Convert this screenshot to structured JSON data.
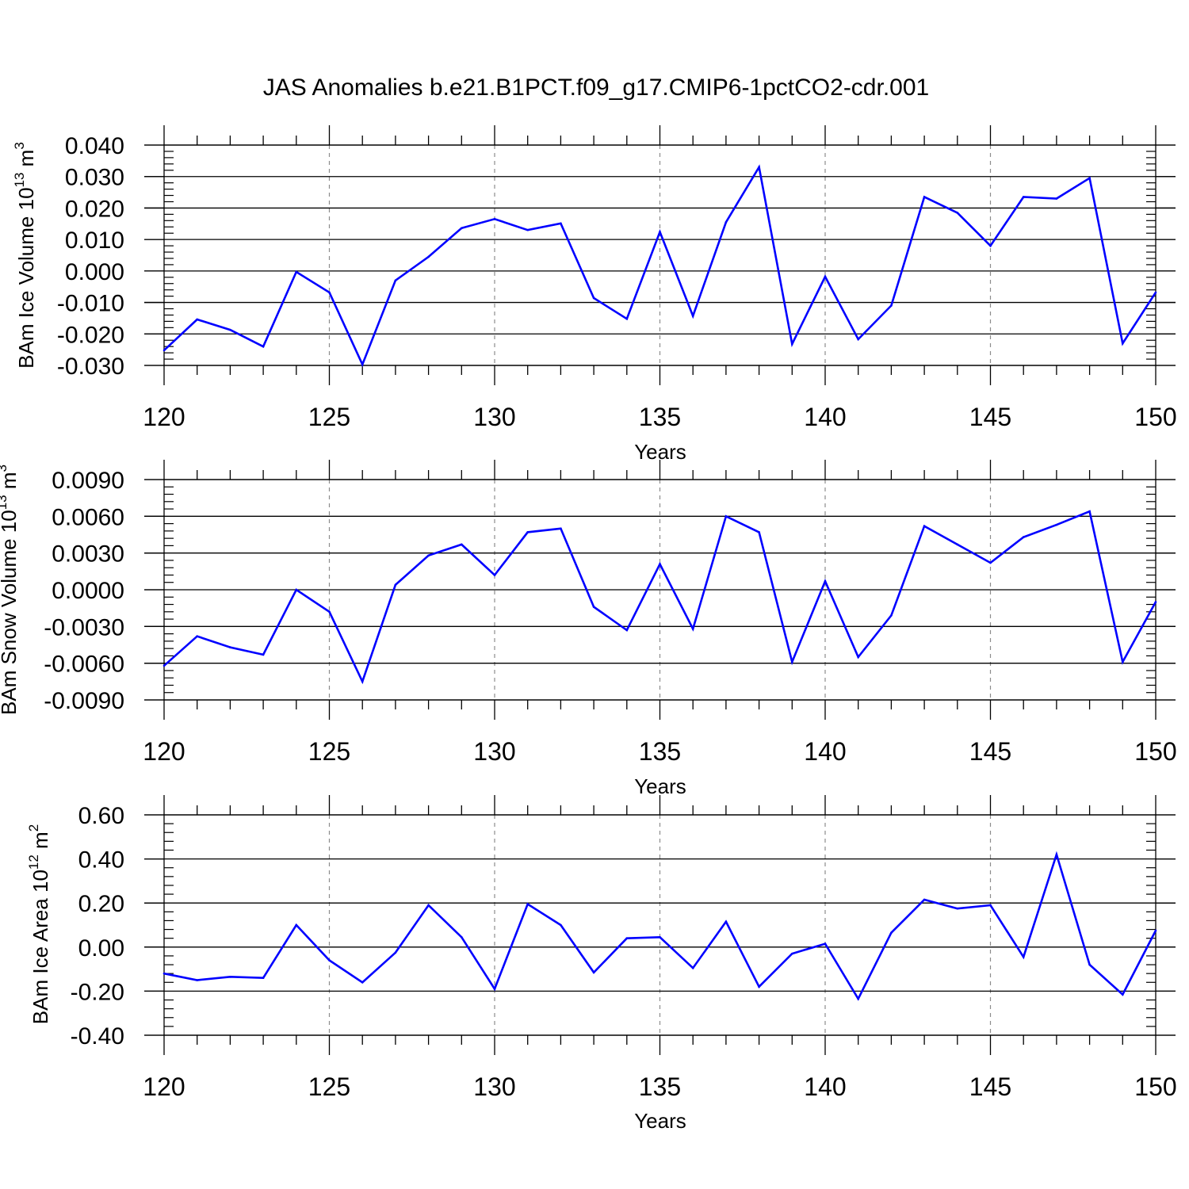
{
  "title": "JAS Anomalies b.e21.B1PCT.f09_g17.CMIP6-1pctCO2-cdr.001",
  "colors": {
    "line": "#0000ff",
    "axis": "#000000",
    "grid": "#8c8c8c"
  },
  "chart_data": [
    {
      "type": "line",
      "ylabel": {
        "main": "BAm Ice Volume 10",
        "sup1": "13",
        "unit": " m",
        "sup2": "3"
      },
      "xlabel": "Years",
      "xlim": [
        120,
        150
      ],
      "ylim": [
        -0.03,
        0.04
      ],
      "yticks": [
        -0.03,
        -0.02,
        -0.01,
        0.0,
        0.01,
        0.02,
        0.03,
        0.04
      ],
      "ytick_labels": [
        "-0.030",
        "-0.020",
        "-0.010",
        "0.000",
        "0.010",
        "0.020",
        "0.030",
        "0.040"
      ],
      "xticks": [
        120,
        125,
        130,
        135,
        140,
        145,
        150
      ],
      "xtick_labels": [
        "120",
        "125",
        "130",
        "135",
        "140",
        "145",
        "150"
      ],
      "grid": "vertical dashed at major x ticks",
      "x": [
        120,
        121,
        122,
        123,
        124,
        125,
        126,
        127,
        128,
        129,
        130,
        131,
        132,
        133,
        134,
        135,
        136,
        137,
        138,
        139,
        140,
        141,
        142,
        143,
        144,
        145,
        146,
        147,
        148,
        149,
        150
      ],
      "series": [
        {
          "values": [
            -0.0252,
            -0.0154,
            -0.0187,
            -0.024,
            -0.0003,
            -0.0068,
            -0.0297,
            -0.003,
            0.0045,
            0.0136,
            0.0165,
            0.013,
            0.0151,
            -0.0086,
            -0.0152,
            0.0124,
            -0.0143,
            0.0155,
            0.033,
            -0.0232,
            -0.0018,
            -0.0217,
            -0.011,
            0.0235,
            0.0185,
            0.008,
            0.0235,
            0.023,
            0.0295,
            -0.023,
            -0.0068
          ]
        }
      ]
    },
    {
      "type": "line",
      "ylabel": {
        "main": "BAm Snow Volume 10",
        "sup1": "13",
        "unit": " m",
        "sup2": "3"
      },
      "xlabel": "Years",
      "xlim": [
        120,
        150
      ],
      "ylim": [
        -0.009,
        0.009
      ],
      "yticks": [
        -0.009,
        -0.006,
        -0.003,
        0.0,
        0.003,
        0.006,
        0.009
      ],
      "ytick_labels": [
        "-0.0090",
        "-0.0060",
        "-0.0030",
        "0.0000",
        "0.0030",
        "0.0060",
        "0.0090"
      ],
      "xticks": [
        120,
        125,
        130,
        135,
        140,
        145,
        150
      ],
      "xtick_labels": [
        "120",
        "125",
        "130",
        "135",
        "140",
        "145",
        "150"
      ],
      "grid": "vertical dashed at major x ticks",
      "x": [
        120,
        121,
        122,
        123,
        124,
        125,
        126,
        127,
        128,
        129,
        130,
        131,
        132,
        133,
        134,
        135,
        136,
        137,
        138,
        139,
        140,
        141,
        142,
        143,
        144,
        145,
        146,
        147,
        148,
        149,
        150
      ],
      "series": [
        {
          "values": [
            -0.0062,
            -0.0038,
            -0.0047,
            -0.0053,
            0.0,
            -0.0018,
            -0.0075,
            0.0004,
            0.0028,
            0.0037,
            0.0012,
            0.0047,
            0.005,
            -0.0014,
            -0.0033,
            0.0021,
            -0.0032,
            0.006,
            0.0047,
            -0.0059,
            0.0007,
            -0.0055,
            -0.0021,
            0.0052,
            0.0037,
            0.0022,
            0.0043,
            0.0053,
            0.0064,
            -0.0059,
            -0.001
          ]
        }
      ]
    },
    {
      "type": "line",
      "ylabel": {
        "main": "BAm Ice Area 10",
        "sup1": "12",
        "unit": " m",
        "sup2": "2"
      },
      "xlabel": "Years",
      "xlim": [
        120,
        150
      ],
      "ylim": [
        -0.4,
        0.6
      ],
      "yticks": [
        -0.4,
        -0.2,
        0.0,
        0.2,
        0.4,
        0.6
      ],
      "ytick_labels": [
        "-0.40",
        "-0.20",
        "0.00",
        "0.20",
        "0.40",
        "0.60"
      ],
      "xticks": [
        120,
        125,
        130,
        135,
        140,
        145,
        150
      ],
      "xtick_labels": [
        "120",
        "125",
        "130",
        "135",
        "140",
        "145",
        "150"
      ],
      "grid": "vertical dashed at major x ticks",
      "x": [
        120,
        121,
        122,
        123,
        124,
        125,
        126,
        127,
        128,
        129,
        130,
        131,
        132,
        133,
        134,
        135,
        136,
        137,
        138,
        139,
        140,
        141,
        142,
        143,
        144,
        145,
        146,
        147,
        148,
        149,
        150
      ],
      "series": [
        {
          "values": [
            -0.12,
            -0.15,
            -0.135,
            -0.14,
            0.1,
            -0.06,
            -0.16,
            -0.025,
            0.19,
            0.045,
            -0.19,
            0.195,
            0.1,
            -0.115,
            0.04,
            0.045,
            -0.095,
            0.115,
            -0.18,
            -0.03,
            0.015,
            -0.235,
            0.065,
            0.215,
            0.175,
            0.19,
            -0.045,
            0.42,
            -0.08,
            -0.215,
            0.075
          ]
        }
      ]
    }
  ]
}
